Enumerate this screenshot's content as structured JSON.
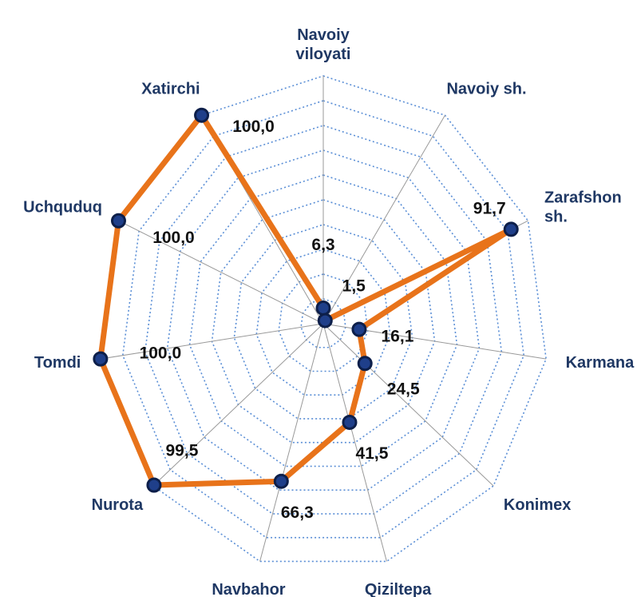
{
  "chart_data": {
    "type": "radar",
    "categories": [
      "Navoiy\nviloyati",
      "Navoiy sh.",
      "Zarafshon\nsh.",
      "Karmana",
      "Konimex",
      "Qiziltepa",
      "Navbahor",
      "Nurota",
      "Tomdi",
      "Uchquduq",
      "Xatirchi"
    ],
    "values": [
      6.3,
      1.5,
      91.7,
      16.1,
      24.5,
      41.5,
      66.3,
      99.5,
      100,
      100,
      100
    ],
    "value_labels": [
      "6,3",
      "1,5",
      "91,7",
      "16,1",
      "24,5",
      "41,5",
      "66,3",
      "99,5",
      "100,0",
      "100,0",
      "100,0"
    ],
    "color": "#e8731a",
    "ylim": [
      0,
      100
    ],
    "yticks": [
      0,
      10,
      20,
      30,
      40,
      50,
      60,
      70,
      80,
      90,
      100
    ],
    "grid": true
  }
}
